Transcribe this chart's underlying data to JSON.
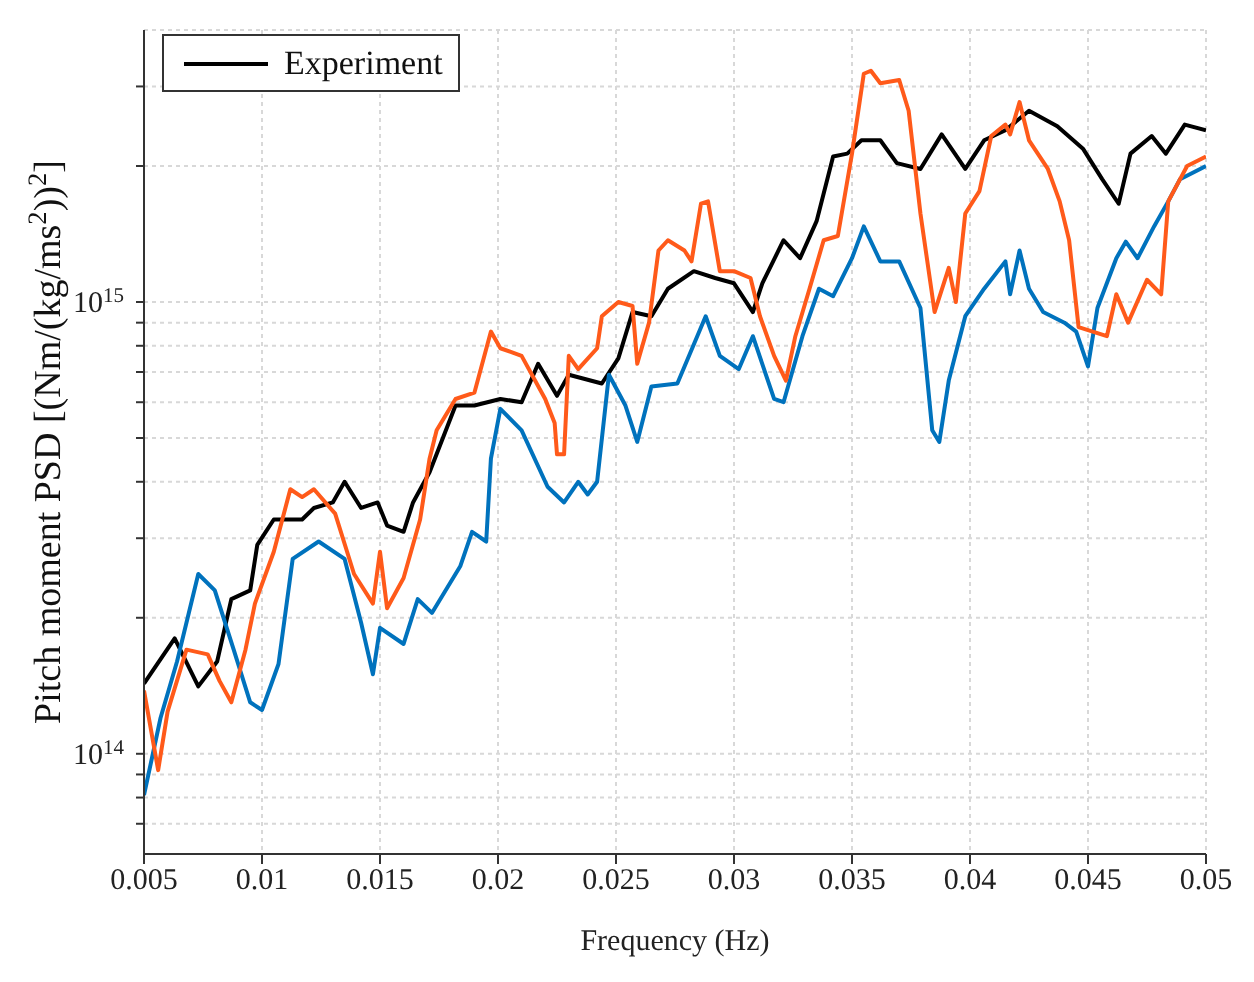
{
  "chart_data": {
    "type": "line",
    "xlabel": "Frequency (Hz)",
    "ylabel": "Pitch moment PSD [(Nm/(kg/ms$^{2}$))$^{2}$]",
    "log": "y",
    "grid": true,
    "legend": "top left",
    "line_style": "solid",
    "marker": "none",
    "xlim": [
      0.005,
      0.05
    ],
    "xticks": [
      0.005,
      0.01,
      0.015,
      0.02,
      0.025,
      0.03,
      0.035,
      0.04,
      0.045,
      0.05
    ],
    "ylim": [
      60000000000000.0,
      4000000000000000.0
    ],
    "yticks": [
      {
        "value": 70000000000000.0,
        "label": null
      },
      {
        "value": 80000000000000.0,
        "label": null
      },
      {
        "value": 90000000000000.0,
        "label": null
      },
      {
        "value": 100000000000000.0,
        "label": "10$^{14}$"
      },
      {
        "value": 200000000000000.0,
        "label": null
      },
      {
        "value": 300000000000000.0,
        "label": null
      },
      {
        "value": 400000000000000.0,
        "label": null
      },
      {
        "value": 500000000000000.0,
        "label": null
      },
      {
        "value": 600000000000000.0,
        "label": null
      },
      {
        "value": 700000000000000.0,
        "label": null
      },
      {
        "value": 800000000000000.0,
        "label": null
      },
      {
        "value": 900000000000000.0,
        "label": null
      },
      {
        "value": 1000000000000000.0,
        "label": "10$^{15}$"
      },
      {
        "value": 2000000000000000.0,
        "label": null
      },
      {
        "value": 3000000000000000.0,
        "label": null
      }
    ],
    "series": [
      {
        "name": "Experiment",
        "color": "#000000",
        "x": [
          0.005,
          0.0063,
          0.0073,
          0.0081,
          0.0087,
          0.0095,
          0.0098,
          0.0105,
          0.0117,
          0.0122,
          0.013,
          0.0135,
          0.0142,
          0.0149,
          0.0153,
          0.016,
          0.0164,
          0.0171,
          0.0182,
          0.019,
          0.0201,
          0.021,
          0.0217,
          0.0225,
          0.023,
          0.0244,
          0.0251,
          0.0257,
          0.0265,
          0.0272,
          0.0283,
          0.0292,
          0.03,
          0.0308,
          0.0312,
          0.0321,
          0.0328,
          0.0335,
          0.0342,
          0.0348,
          0.0354,
          0.0362,
          0.0369,
          0.0379,
          0.0388,
          0.0398,
          0.0406,
          0.0415,
          0.0425,
          0.0437,
          0.0448,
          0.0456,
          0.0463,
          0.0468,
          0.0477,
          0.0483,
          0.0491,
          0.05
        ],
        "values": [
          143000000000000.0,
          180000000000000.0,
          141000000000000.0,
          160000000000000.0,
          220000000000000.0,
          230000000000000.0,
          290000000000000.0,
          330000000000000.0,
          330000000000000.0,
          350000000000000.0,
          360000000000000.0,
          400000000000000.0,
          350000000000000.0,
          360000000000000.0,
          320000000000000.0,
          310000000000000.0,
          360000000000000.0,
          420000000000000.0,
          590000000000000.0,
          590000000000000.0,
          610000000000000.0,
          600000000000000.0,
          730000000000000.0,
          620000000000000.0,
          690000000000000.0,
          660000000000000.0,
          750000000000000.0,
          950000000000000.0,
          930000000000000.0,
          1070000000000000.0,
          1170000000000000.0,
          1130000000000000.0,
          1100000000000000.0,
          950000000000000.0,
          1100000000000000.0,
          1370000000000000.0,
          1250000000000000.0,
          1510000000000000.0,
          2100000000000000.0,
          2130000000000000.0,
          2280000000000000.0,
          2280000000000000.0,
          2030000000000000.0,
          1970000000000000.0,
          2350000000000000.0,
          1970000000000000.0,
          2280000000000000.0,
          2400000000000000.0,
          2650000000000000.0,
          2450000000000000.0,
          2180000000000000.0,
          1870000000000000.0,
          1650000000000000.0,
          2130000000000000.0,
          2330000000000000.0,
          2130000000000000.0,
          2470000000000000.0,
          2400000000000000.0
        ]
      },
      {
        "color": "#0072bd",
        "x": [
          0.005,
          0.0057,
          0.0064,
          0.0073,
          0.008,
          0.0088,
          0.0095,
          0.01,
          0.0107,
          0.0113,
          0.0124,
          0.0135,
          0.0142,
          0.0147,
          0.015,
          0.016,
          0.0166,
          0.0172,
          0.0184,
          0.0189,
          0.0195,
          0.0197,
          0.0201,
          0.021,
          0.0221,
          0.0228,
          0.0234,
          0.0238,
          0.0242,
          0.0247,
          0.0254,
          0.0259,
          0.0265,
          0.0276,
          0.0288,
          0.0294,
          0.0302,
          0.0308,
          0.0317,
          0.0321,
          0.0329,
          0.0336,
          0.0342,
          0.035,
          0.0355,
          0.0362,
          0.037,
          0.0379,
          0.0384,
          0.0387,
          0.0391,
          0.0398,
          0.0406,
          0.0415,
          0.0417,
          0.0421,
          0.0425,
          0.0431,
          0.044,
          0.0445,
          0.045,
          0.0454,
          0.0462,
          0.0466,
          0.0471,
          0.0478,
          0.0484,
          0.0489,
          0.05
        ],
        "values": [
          81000000000000.0,
          120000000000000.0,
          160000000000000.0,
          250000000000000.0,
          230000000000000.0,
          170000000000000.0,
          130000000000000.0,
          125000000000000.0,
          158000000000000.0,
          270000000000000.0,
          295000000000000.0,
          270000000000000.0,
          195000000000000.0,
          150000000000000.0,
          190000000000000.0,
          175000000000000.0,
          220000000000000.0,
          205000000000000.0,
          260000000000000.0,
          310000000000000.0,
          295000000000000.0,
          450000000000000.0,
          580000000000000.0,
          520000000000000.0,
          390000000000000.0,
          360000000000000.0,
          400000000000000.0,
          375000000000000.0,
          400000000000000.0,
          690000000000000.0,
          590000000000000.0,
          490000000000000.0,
          650000000000000.0,
          660000000000000.0,
          930000000000000.0,
          760000000000000.0,
          710000000000000.0,
          840000000000000.0,
          610000000000000.0,
          600000000000000.0,
          840000000000000.0,
          1070000000000000.0,
          1030000000000000.0,
          1250000000000000.0,
          1470000000000000.0,
          1230000000000000.0,
          1230000000000000.0,
          970000000000000.0,
          520000000000000.0,
          490000000000000.0,
          670000000000000.0,
          930000000000000.0,
          1070000000000000.0,
          1230000000000000.0,
          1040000000000000.0,
          1300000000000000.0,
          1070000000000000.0,
          950000000000000.0,
          900000000000000.0,
          860000000000000.0,
          720000000000000.0,
          970000000000000.0,
          1250000000000000.0,
          1360000000000000.0,
          1250000000000000.0,
          1470000000000000.0,
          1670000000000000.0,
          1870000000000000.0,
          2000000000000000.0
        ]
      },
      {
        "color": "#ff5a1a",
        "x": [
          0.005,
          0.0056,
          0.006,
          0.0068,
          0.0077,
          0.0082,
          0.0087,
          0.0093,
          0.0097,
          0.0105,
          0.0112,
          0.0117,
          0.0122,
          0.0131,
          0.0139,
          0.0147,
          0.015,
          0.0153,
          0.016,
          0.0167,
          0.0171,
          0.0174,
          0.0182,
          0.019,
          0.0197,
          0.0201,
          0.021,
          0.022,
          0.0224,
          0.0225,
          0.0228,
          0.023,
          0.0234,
          0.0242,
          0.0244,
          0.0251,
          0.0257,
          0.0259,
          0.0264,
          0.0268,
          0.0272,
          0.0279,
          0.0282,
          0.0286,
          0.0289,
          0.0294,
          0.03,
          0.0307,
          0.0311,
          0.0317,
          0.0322,
          0.0326,
          0.0332,
          0.0338,
          0.0344,
          0.035,
          0.0355,
          0.0358,
          0.0362,
          0.037,
          0.0374,
          0.0379,
          0.0385,
          0.0391,
          0.0394,
          0.0398,
          0.0404,
          0.0409,
          0.0415,
          0.0417,
          0.0421,
          0.0425,
          0.0433,
          0.0438,
          0.0442,
          0.0446,
          0.0452,
          0.0458,
          0.0462,
          0.0467,
          0.0475,
          0.0481,
          0.0484,
          0.0492,
          0.05
        ],
        "values": [
          138000000000000.0,
          92000000000000.0,
          124000000000000.0,
          170000000000000.0,
          166000000000000.0,
          145000000000000.0,
          130000000000000.0,
          170000000000000.0,
          215000000000000.0,
          280000000000000.0,
          385000000000000.0,
          370000000000000.0,
          385000000000000.0,
          340000000000000.0,
          250000000000000.0,
          215000000000000.0,
          280000000000000.0,
          210000000000000.0,
          245000000000000.0,
          330000000000000.0,
          450000000000000.0,
          520000000000000.0,
          610000000000000.0,
          630000000000000.0,
          860000000000000.0,
          790000000000000.0,
          760000000000000.0,
          610000000000000.0,
          540000000000000.0,
          460000000000000.0,
          460000000000000.0,
          760000000000000.0,
          710000000000000.0,
          790000000000000.0,
          930000000000000.0,
          1000000000000000.0,
          980000000000000.0,
          730000000000000.0,
          900000000000000.0,
          1300000000000000.0,
          1370000000000000.0,
          1300000000000000.0,
          1230000000000000.0,
          1650000000000000.0,
          1670000000000000.0,
          1170000000000000.0,
          1170000000000000.0,
          1130000000000000.0,
          930000000000000.0,
          760000000000000.0,
          670000000000000.0,
          840000000000000.0,
          1070000000000000.0,
          1370000000000000.0,
          1400000000000000.0,
          2130000000000000.0,
          3200000000000000.0,
          3250000000000000.0,
          3050000000000000.0,
          3100000000000000.0,
          2650000000000000.0,
          1570000000000000.0,
          950000000000000.0,
          1190000000000000.0,
          1000000000000000.0,
          1570000000000000.0,
          1760000000000000.0,
          2330000000000000.0,
          2470000000000000.0,
          2350000000000000.0,
          2770000000000000.0,
          2280000000000000.0,
          1970000000000000.0,
          1670000000000000.0,
          1370000000000000.0,
          880000000000000.0,
          860000000000000.0,
          840000000000000.0,
          1040000000000000.0,
          900000000000000.0,
          1120000000000000.0,
          1040000000000000.0,
          1670000000000000.0,
          2000000000000000.0,
          2100000000000000.0
        ]
      }
    ]
  }
}
